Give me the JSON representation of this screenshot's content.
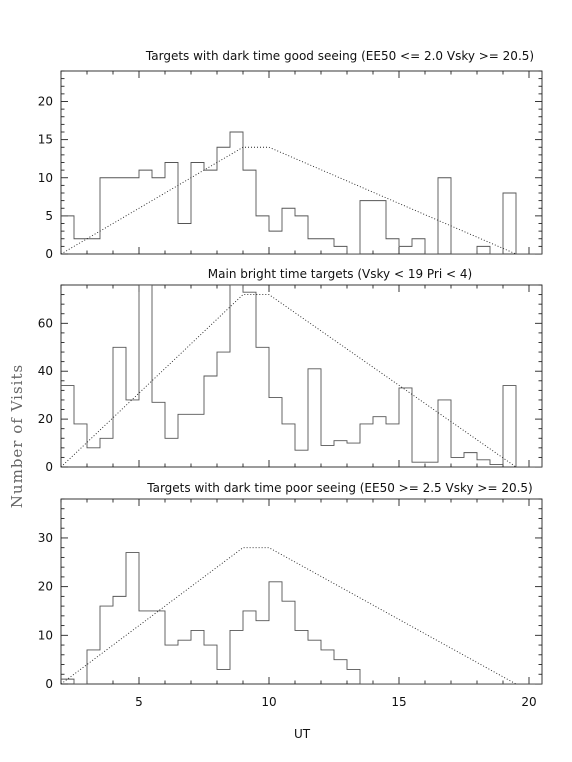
{
  "ylabel": "Number of Visits",
  "xlabel": "UT",
  "chart_data": [
    {
      "type": "histogram",
      "title": "Targets with dark time good seeing (EE50 <= 2.0 Vsky >= 20.5)",
      "xlim": [
        2,
        20.5
      ],
      "ylim": [
        0,
        24
      ],
      "xticks": [
        5,
        10,
        15,
        20
      ],
      "yticks": [
        0,
        5,
        10,
        15,
        20
      ],
      "bin_width": 0.5,
      "bin_start": 2,
      "values": [
        5,
        2,
        2,
        10,
        10,
        10,
        11,
        10,
        12,
        4,
        12,
        11,
        14,
        16,
        11,
        5,
        3,
        6,
        5,
        2,
        2,
        1,
        0,
        7,
        7,
        2,
        1,
        2,
        0,
        10,
        0,
        0,
        1,
        0,
        8,
        0,
        0
      ],
      "envelope": {
        "x": [
          2,
          9,
          10,
          19.5
        ],
        "y": [
          0,
          14,
          14,
          0
        ]
      }
    },
    {
      "type": "histogram",
      "title": "Main bright time targets (Vsky < 19 Pri < 4)",
      "xlim": [
        2,
        20.5
      ],
      "ylim": [
        0,
        76
      ],
      "xticks": [
        5,
        10,
        15,
        20
      ],
      "yticks": [
        0,
        20,
        40,
        60
      ],
      "bin_width": 0.5,
      "bin_start": 2,
      "values": [
        34,
        18,
        8,
        12,
        50,
        28,
        76,
        27,
        12,
        22,
        22,
        38,
        48,
        76,
        73,
        50,
        29,
        18,
        7,
        41,
        9,
        11,
        10,
        18,
        21,
        18,
        33,
        2,
        2,
        28,
        4,
        6,
        3,
        1,
        34,
        0,
        0
      ],
      "envelope": {
        "x": [
          2,
          9,
          10,
          19.5
        ],
        "y": [
          0,
          72,
          72,
          0
        ]
      }
    },
    {
      "type": "histogram",
      "title": "Targets with dark time poor seeing (EE50 >= 2.5 Vsky >= 20.5)",
      "xlim": [
        2,
        20.5
      ],
      "ylim": [
        0,
        38
      ],
      "xticks": [
        5,
        10,
        15,
        20
      ],
      "yticks": [
        0,
        10,
        20,
        30
      ],
      "bin_width": 0.5,
      "bin_start": 2,
      "values": [
        1,
        0,
        7,
        16,
        18,
        27,
        15,
        15,
        8,
        9,
        11,
        8,
        3,
        11,
        15,
        13,
        21,
        17,
        11,
        9,
        7,
        5,
        3,
        0,
        0,
        0,
        0,
        0,
        0,
        0,
        0,
        0,
        0,
        0,
        0,
        0,
        0
      ],
      "envelope": {
        "x": [
          2,
          9,
          10,
          19.5
        ],
        "y": [
          0,
          28,
          28,
          0
        ]
      }
    }
  ]
}
